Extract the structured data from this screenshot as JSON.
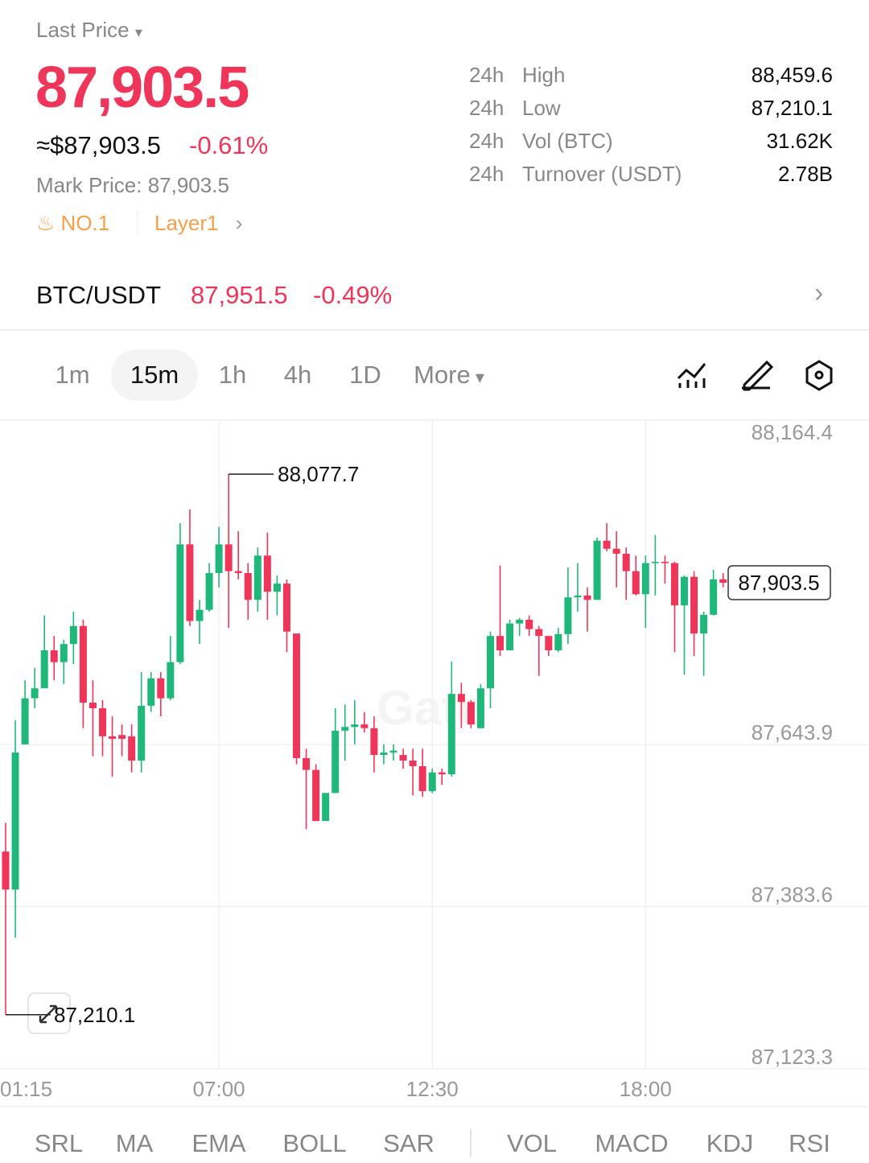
{
  "header": {
    "last_price_label": "Last Price",
    "last_price": "87,903.5",
    "usd_price": "≈$87,903.5",
    "change": "-0.61%",
    "mark_price_label": "Mark Price:",
    "mark_price": "87,903.5",
    "tags": [
      "NO.1",
      "Layer1"
    ]
  },
  "stats": [
    {
      "period": "24h",
      "label": "High",
      "value": "88,459.6"
    },
    {
      "period": "24h",
      "label": "Low",
      "value": "87,210.1"
    },
    {
      "period": "24h",
      "label": "Vol (BTC)",
      "value": "31.62K"
    },
    {
      "period": "24h",
      "label": "Turnover (USDT)",
      "value": "2.78B"
    }
  ],
  "pair": {
    "name": "BTC/USDT",
    "price": "87,951.5",
    "change": "-0.49%"
  },
  "timeframes": {
    "options": [
      "1m",
      "15m",
      "1h",
      "4h",
      "1D",
      "More"
    ],
    "selected": "15m"
  },
  "indicators": {
    "main": [
      "SRL",
      "MA",
      "EMA",
      "BOLL",
      "SAR"
    ],
    "sub": [
      "VOL",
      "MACD",
      "KDJ",
      "RSI"
    ]
  },
  "watermark": "Gate",
  "chart_data": {
    "type": "candlestick",
    "up_color": "#20b87a",
    "down_color": "#f0355a",
    "categories": [
      "01:15",
      null,
      null,
      null,
      null,
      null,
      null,
      null,
      null,
      null,
      null,
      null,
      null,
      null,
      null,
      null,
      null,
      null,
      null,
      null,
      null,
      null,
      "07:00",
      null,
      null,
      null,
      null,
      null,
      null,
      null,
      null,
      null,
      null,
      null,
      null,
      null,
      null,
      null,
      null,
      null,
      null,
      null,
      null,
      null,
      "12:30",
      null,
      null,
      null,
      null,
      null,
      null,
      null,
      null,
      null,
      null,
      null,
      null,
      null,
      null,
      null,
      null,
      null,
      null,
      null,
      null,
      null,
      "18:00",
      null,
      null,
      null,
      null,
      null,
      null,
      null,
      null
    ],
    "open": [
      87472,
      87411,
      87644,
      87718,
      87734,
      87795,
      87776,
      87805,
      87834,
      87711,
      87702,
      87657,
      87659,
      87657,
      87618,
      87706,
      87750,
      87718,
      87776,
      87965,
      87842,
      87860,
      87919,
      87965,
      87922,
      87919,
      87876,
      87947,
      87889,
      87902,
      87822,
      87622,
      87603,
      87521,
      87566,
      87666,
      87672,
      87676,
      87670,
      87627,
      87631,
      87627,
      87618,
      87609,
      87569,
      87599,
      87596,
      87725,
      87712,
      87670,
      87734,
      87818,
      87795,
      87838,
      87844,
      87829,
      87818,
      87795,
      87821,
      87880,
      87883,
      87876,
      87971,
      87958,
      87950,
      87922,
      87885,
      87935,
      87937,
      87935,
      87867,
      87913,
      87822,
      87852,
      87909
    ],
    "high": [
      87518,
      87683,
      87747,
      87767,
      87851,
      87818,
      87812,
      87857,
      87844,
      87747,
      87715,
      87689,
      87676,
      87676,
      87760,
      87760,
      87760,
      87818,
      87999,
      88021,
      87876,
      87935,
      87993,
      88077.7,
      87986,
      87935,
      87960,
      87984,
      87915,
      87909,
      87822,
      87637,
      87612,
      87566,
      87702,
      87708,
      87715,
      87696,
      87689,
      87644,
      87644,
      87637,
      87637,
      87637,
      87605,
      87605,
      87777,
      87743,
      87715,
      87741,
      87825,
      87931,
      87844,
      87847,
      87851,
      87834,
      87818,
      87831,
      87928,
      87935,
      87896,
      87976,
      87999,
      87986,
      87960,
      87947,
      87947,
      87980,
      87947,
      87937,
      87915,
      87922,
      87857,
      87924,
      87919
    ],
    "low": [
      87210.1,
      87334,
      87644,
      87702,
      87741,
      87747,
      87741,
      87773,
      87670,
      87625,
      87625,
      87592,
      87625,
      87599,
      87599,
      87696,
      87689,
      87715,
      87773,
      87834,
      87805,
      87857,
      87896,
      87831,
      87909,
      87844,
      87857,
      87844,
      87851,
      87792,
      87612,
      87508,
      87521,
      87521,
      87566,
      87618,
      87644,
      87663,
      87599,
      87612,
      87618,
      87605,
      87562,
      87560,
      87566,
      87579,
      87592,
      87670,
      87670,
      87670,
      87702,
      87786,
      87795,
      87818,
      87818,
      87754,
      87786,
      87792,
      87805,
      87857,
      87825,
      87876,
      87954,
      87896,
      87876,
      87883,
      87831,
      87883,
      87902,
      87792,
      87756,
      87786,
      87754,
      87851,
      87896
    ],
    "close": [
      87411,
      87631,
      87718,
      87734,
      87795,
      87776,
      87805,
      87834,
      87711,
      87702,
      87657,
      87653,
      87653,
      87618,
      87706,
      87750,
      87718,
      87776,
      87965,
      87842,
      87860,
      87919,
      87965,
      87922,
      87919,
      87876,
      87947,
      87889,
      87902,
      87825,
      87622,
      87603,
      87521,
      87566,
      87666,
      87672,
      87676,
      87670,
      87627,
      87631,
      87634,
      87618,
      87609,
      87569,
      87599,
      87596,
      87725,
      87712,
      87676,
      87734,
      87818,
      87795,
      87838,
      87844,
      87829,
      87818,
      87795,
      87821,
      87880,
      87883,
      87876,
      87971,
      87958,
      87950,
      87922,
      87885,
      87935,
      87937,
      87935,
      87867,
      87913,
      87822,
      87852,
      87909,
      87903.5
    ],
    "ylim": [
      87123.3,
      88164.4
    ],
    "yticks": [
      {
        "value": 88164.4,
        "label": "88,164.4"
      },
      {
        "value": 87643.9,
        "label": "87,643.9"
      },
      {
        "value": 87383.6,
        "label": "87,383.6"
      },
      {
        "value": 87123.3,
        "label": "87,123.3"
      }
    ],
    "grid": true,
    "max_label": "88,077.7",
    "min_label": "87,210.1",
    "last_label": "87,903.5"
  }
}
